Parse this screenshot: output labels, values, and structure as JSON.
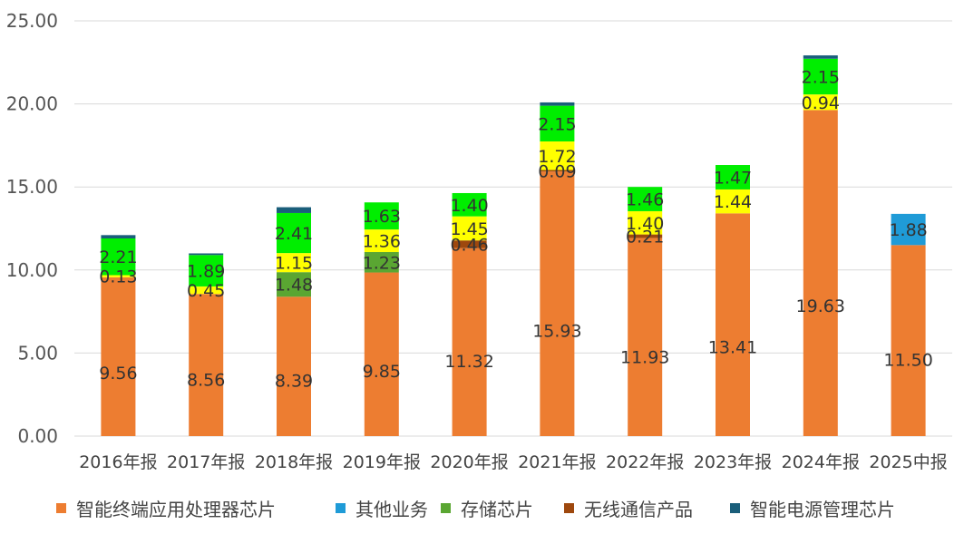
{
  "chart_data": {
    "type": "bar",
    "stacked": true,
    "categories": [
      "2016年报",
      "2017年报",
      "2018年报",
      "2019年报",
      "2020年报",
      "2021年报",
      "2022年报",
      "2023年报",
      "2024年报",
      "2025中报"
    ],
    "ylim": [
      0,
      25
    ],
    "yticks": [
      "0.00",
      "5.00",
      "10.00",
      "15.00",
      "20.00",
      "25.00"
    ],
    "grid": true,
    "legend_position": "bottom",
    "series": [
      {
        "name": "智能终端应用处理器芯片",
        "color": "#ED7D31",
        "values": [
          9.56,
          8.56,
          8.39,
          9.85,
          11.32,
          15.93,
          11.93,
          13.41,
          19.63,
          11.5
        ],
        "labels": [
          "9.56",
          "8.56",
          "8.39",
          "9.85",
          "11.32",
          "15.93",
          "11.93",
          "13.41",
          "19.63",
          "11.50"
        ]
      },
      {
        "name": "其他业务",
        "color": "#1F9BD7",
        "values": [
          0,
          0,
          0,
          0,
          0,
          0,
          0,
          0,
          0,
          1.88
        ],
        "labels": [
          "",
          "",
          "",
          "",
          "",
          "",
          "",
          "",
          "",
          "1.88"
        ]
      },
      {
        "name": "存储芯片",
        "color": "#5AA632",
        "values": [
          0,
          0,
          1.48,
          1.23,
          0,
          0,
          0,
          0,
          0,
          0
        ],
        "labels": [
          "",
          "",
          "1.48",
          "1.23",
          "",
          "",
          "",
          "",
          "",
          ""
        ]
      },
      {
        "name": "无线通信产品",
        "color": "#9E480E",
        "values": [
          0,
          0,
          0,
          0,
          0.46,
          0.09,
          0.21,
          0,
          0,
          0
        ],
        "labels": [
          "",
          "",
          "",
          "",
          "0.46",
          "0.09",
          "0.21",
          "",
          "",
          ""
        ]
      },
      {
        "name": "",
        "color": "#FFFF00",
        "values": [
          0.13,
          0.45,
          1.15,
          1.36,
          1.45,
          1.72,
          1.4,
          1.44,
          0.94,
          0
        ],
        "labels": [
          "0.13",
          "0.45",
          "1.15",
          "1.36",
          "1.45",
          "1.72",
          "1.40",
          "1.44",
          "0.94",
          ""
        ]
      },
      {
        "name": "",
        "color": "#00EE00",
        "values": [
          2.21,
          1.89,
          2.41,
          1.63,
          1.4,
          2.15,
          1.46,
          1.47,
          2.15,
          0
        ],
        "labels": [
          "2.21",
          "1.89",
          "2.41",
          "1.63",
          "1.40",
          "2.15",
          "1.46",
          "1.47",
          "2.15",
          ""
        ]
      },
      {
        "name": "智能电源管理芯片",
        "color": "#1A5E7A",
        "values": [
          0.2,
          0.1,
          0.35,
          0,
          0,
          0.2,
          0,
          0,
          0.2,
          0
        ],
        "labels": [
          "",
          "",
          "",
          "",
          "",
          "",
          "",
          "",
          "",
          ""
        ]
      }
    ],
    "legend": [
      {
        "name": "智能终端应用处理器芯片",
        "color": "#ED7D31"
      },
      {
        "name": "其他业务",
        "color": "#1F9BD7"
      },
      {
        "name": "存储芯片",
        "color": "#5AA632"
      },
      {
        "name": "无线通信产品",
        "color": "#9E480E"
      },
      {
        "name": "智能电源管理芯片",
        "color": "#1A5E7A"
      }
    ]
  }
}
